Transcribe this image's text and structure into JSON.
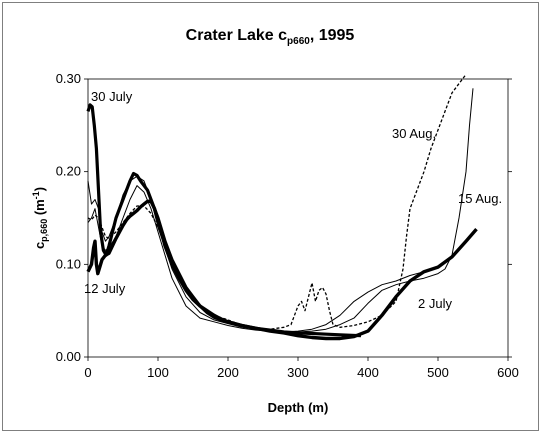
{
  "chart_data": {
    "type": "line",
    "title": {
      "main": "Crater Lake c",
      "sub": "p660",
      "tail": ", 1995"
    },
    "xlabel": "Depth (m)",
    "ylabel": {
      "main": "c",
      "sub": "p,660",
      "unit_open": " (m",
      "unit_sup": "-1",
      "unit_close": ")"
    },
    "xlim": [
      0,
      600
    ],
    "ylim": [
      0,
      0.3
    ],
    "xticks": [
      "0",
      "100",
      "200",
      "300",
      "400",
      "500",
      "600"
    ],
    "yticks": [
      "0.00",
      "0.10",
      "0.20",
      "0.30"
    ],
    "grid": false,
    "annotations": [
      {
        "id": "30jul",
        "text": "30 July"
      },
      {
        "id": "12jul-left",
        "text": "12 July"
      },
      {
        "id": "30aug",
        "text": "30 Aug."
      },
      {
        "id": "15aug",
        "text": "15 Aug."
      },
      {
        "id": "12jul-right",
        "text": "2 July"
      }
    ],
    "series": [
      {
        "id": "s30jul",
        "width": 3.2,
        "dash": "",
        "x": [
          0,
          3,
          6,
          9,
          12,
          15,
          18,
          22,
          26,
          30,
          35,
          40,
          45,
          50,
          55,
          60,
          65,
          70,
          75,
          80,
          85,
          90,
          95,
          100,
          110,
          120,
          130,
          140,
          150,
          160,
          170,
          180,
          190,
          200,
          220,
          240,
          260,
          280,
          300,
          330,
          360,
          390
        ],
        "y": [
          0.265,
          0.272,
          0.27,
          0.25,
          0.225,
          0.18,
          0.135,
          0.115,
          0.11,
          0.12,
          0.135,
          0.15,
          0.16,
          0.17,
          0.18,
          0.19,
          0.198,
          0.196,
          0.19,
          0.185,
          0.18,
          0.17,
          0.16,
          0.15,
          0.125,
          0.105,
          0.09,
          0.075,
          0.065,
          0.055,
          0.048,
          0.043,
          0.04,
          0.038,
          0.034,
          0.031,
          0.029,
          0.027,
          0.026,
          0.025,
          0.024,
          0.023
        ]
      },
      {
        "id": "s12jul",
        "width": 3.4,
        "dash": "",
        "x": [
          0,
          5,
          8,
          10,
          12,
          14,
          16,
          20,
          25,
          30,
          35,
          40,
          45,
          50,
          55,
          60,
          65,
          70,
          75,
          80,
          85,
          90,
          95,
          100,
          105,
          110,
          120,
          130,
          140,
          150,
          160,
          170,
          180,
          190,
          200,
          220,
          240,
          260,
          280,
          300,
          320,
          340,
          360,
          380,
          400,
          420,
          440,
          460,
          480,
          500,
          520,
          540,
          555
        ],
        "y": [
          0.092,
          0.1,
          0.118,
          0.125,
          0.1,
          0.09,
          0.095,
          0.105,
          0.11,
          0.112,
          0.12,
          0.128,
          0.135,
          0.142,
          0.148,
          0.152,
          0.155,
          0.158,
          0.162,
          0.165,
          0.168,
          0.168,
          0.16,
          0.148,
          0.135,
          0.12,
          0.1,
          0.085,
          0.072,
          0.062,
          0.055,
          0.05,
          0.045,
          0.041,
          0.038,
          0.034,
          0.031,
          0.028,
          0.026,
          0.023,
          0.021,
          0.02,
          0.02,
          0.022,
          0.028,
          0.045,
          0.065,
          0.082,
          0.092,
          0.097,
          0.108,
          0.125,
          0.138
        ]
      },
      {
        "id": "s30aug",
        "width": 1.3,
        "dash": "3,2",
        "x": [
          0,
          5,
          10,
          15,
          20,
          25,
          30,
          40,
          50,
          60,
          70,
          80,
          90,
          100,
          120,
          140,
          160,
          180,
          200,
          220,
          240,
          260,
          280,
          290,
          295,
          300,
          305,
          310,
          315,
          320,
          325,
          330,
          335,
          340,
          345,
          350,
          360,
          380,
          400,
          420,
          440,
          450,
          455,
          460,
          470,
          480,
          490,
          500,
          510,
          520,
          530,
          540
        ],
        "y": [
          0.15,
          0.148,
          0.153,
          0.15,
          0.14,
          0.13,
          0.128,
          0.135,
          0.145,
          0.155,
          0.163,
          0.163,
          0.155,
          0.14,
          0.105,
          0.075,
          0.055,
          0.045,
          0.04,
          0.034,
          0.03,
          0.03,
          0.032,
          0.035,
          0.045,
          0.055,
          0.06,
          0.05,
          0.065,
          0.08,
          0.06,
          0.072,
          0.075,
          0.068,
          0.05,
          0.035,
          0.032,
          0.034,
          0.038,
          0.045,
          0.06,
          0.095,
          0.13,
          0.16,
          0.18,
          0.2,
          0.225,
          0.245,
          0.265,
          0.285,
          0.295,
          0.305
        ]
      },
      {
        "id": "s15aug",
        "width": 1.0,
        "dash": "",
        "x": [
          0,
          5,
          10,
          15,
          20,
          25,
          30,
          40,
          50,
          60,
          70,
          80,
          90,
          100,
          120,
          140,
          160,
          180,
          200,
          220,
          240,
          260,
          280,
          300,
          320,
          340,
          360,
          380,
          400,
          420,
          440,
          460,
          480,
          500,
          510,
          520,
          530,
          540,
          545,
          550
        ],
        "y": [
          0.19,
          0.165,
          0.17,
          0.16,
          0.135,
          0.125,
          0.13,
          0.15,
          0.175,
          0.19,
          0.195,
          0.19,
          0.17,
          0.14,
          0.095,
          0.065,
          0.048,
          0.04,
          0.036,
          0.032,
          0.03,
          0.028,
          0.027,
          0.027,
          0.028,
          0.03,
          0.035,
          0.042,
          0.058,
          0.072,
          0.078,
          0.082,
          0.085,
          0.09,
          0.095,
          0.11,
          0.15,
          0.2,
          0.25,
          0.29
        ]
      },
      {
        "id": "s-extra",
        "width": 1.0,
        "dash": "",
        "x": [
          0,
          5,
          10,
          15,
          20,
          25,
          30,
          40,
          50,
          60,
          70,
          80,
          90,
          100,
          120,
          140,
          160,
          180,
          200,
          220,
          240,
          260,
          280,
          300,
          320,
          340,
          360,
          380,
          400,
          420,
          440,
          460,
          480
        ],
        "y": [
          0.145,
          0.15,
          0.16,
          0.14,
          0.12,
          0.115,
          0.118,
          0.13,
          0.15,
          0.17,
          0.185,
          0.178,
          0.16,
          0.135,
          0.085,
          0.055,
          0.042,
          0.038,
          0.034,
          0.031,
          0.029,
          0.028,
          0.027,
          0.028,
          0.03,
          0.035,
          0.045,
          0.06,
          0.07,
          0.078,
          0.082,
          0.088,
          0.092
        ]
      }
    ]
  }
}
